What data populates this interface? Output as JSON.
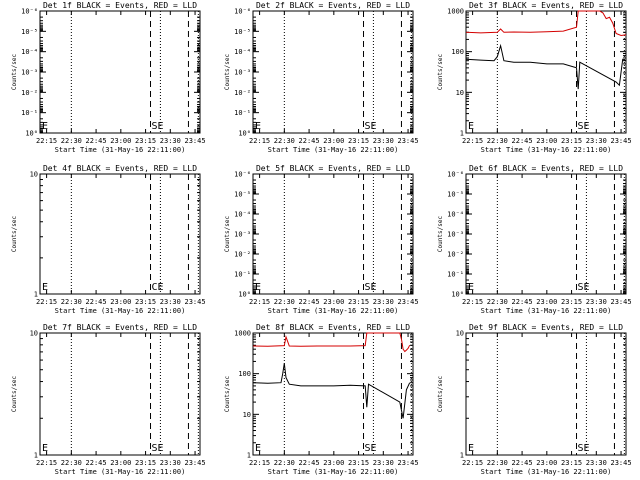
{
  "chart_data": [
    {
      "type": "line",
      "title": "Det 1f BLACK = Events, RED = LLD",
      "xlabel": "Start Time (31-May-16 22:11:00)",
      "ylabel": "Counts/sec",
      "x_ticks": [
        "22:15",
        "22:30",
        "22:45",
        "23:00",
        "23:15",
        "23:30",
        "23:45"
      ],
      "y_scale": "log",
      "y_ticks": [
        "10^0",
        "10^-1",
        "10^-2",
        "10^-3",
        "10^-4",
        "10^-5",
        "10^-6"
      ],
      "ylim": [
        1e-06,
        1.0
      ],
      "flipped_axis": true,
      "markers": [
        "E",
        "SE"
      ],
      "series": []
    },
    {
      "type": "line",
      "title": "Det 2f BLACK = Events, RED = LLD",
      "xlabel": "Start Time (31-May-16 22:11:00)",
      "ylabel": "Counts/sec",
      "x_ticks": [
        "22:15",
        "22:30",
        "22:45",
        "23:00",
        "23:15",
        "23:30",
        "23:45"
      ],
      "y_scale": "log",
      "y_ticks": [
        "10^0",
        "10^-1",
        "10^-2",
        "10^-3",
        "10^-4",
        "10^-5",
        "10^-6"
      ],
      "ylim": [
        1e-06,
        1.0
      ],
      "flipped_axis": true,
      "markers": [
        "E",
        "SE"
      ],
      "series": []
    },
    {
      "type": "line",
      "title": "Det 3f BLACK = Events, RED = LLD",
      "xlabel": "Start Time (31-May-16 22:11:00)",
      "ylabel": "Counts/sec",
      "x_ticks": [
        "22:15",
        "22:30",
        "22:45",
        "23:00",
        "23:15",
        "23:30",
        "23:45"
      ],
      "y_scale": "log",
      "y_ticks": [
        "1",
        "10",
        "100",
        "1000"
      ],
      "ylim": [
        1,
        1000
      ],
      "flipped_axis": false,
      "markers": [
        "E",
        "SE"
      ],
      "series": [
        {
          "color": "#d40000",
          "x": [
            "22:11",
            "22:20",
            "22:30",
            "22:32",
            "22:34",
            "22:40",
            "22:50",
            "23:00",
            "23:10",
            "23:18",
            "23:19",
            "23:22",
            "23:25",
            "23:28",
            "23:32",
            "23:34",
            "23:36",
            "23:38",
            "23:40",
            "23:42",
            "23:45",
            "23:48"
          ],
          "y": [
            300,
            290,
            300,
            360,
            300,
            305,
            300,
            310,
            320,
            400,
            1000,
            1000,
            1000,
            1000,
            1000,
            900,
            650,
            700,
            500,
            280,
            250,
            260
          ]
        },
        {
          "color": "#000000",
          "x": [
            "22:11",
            "22:20",
            "22:28",
            "22:30",
            "22:32",
            "22:34",
            "22:40",
            "22:50",
            "23:00",
            "23:10",
            "23:18",
            "23:19",
            "23:20",
            "23:42",
            "23:44",
            "23:46",
            "23:48"
          ],
          "y": [
            65,
            62,
            60,
            75,
            140,
            60,
            55,
            55,
            50,
            50,
            40,
            12,
            55,
            18,
            15,
            65,
            60
          ]
        }
      ]
    },
    {
      "type": "line",
      "title": "Det 4f BLACK = Events, RED = LLD",
      "xlabel": "Start Time (31-May-16 22:11:00)",
      "ylabel": "Counts/sec",
      "x_ticks": [
        "22:15",
        "22:30",
        "22:45",
        "23:00",
        "23:15",
        "23:30",
        "23:45"
      ],
      "y_scale": "log",
      "y_ticks": [
        "1",
        "10"
      ],
      "ylim": [
        1,
        10
      ],
      "flipped_axis": false,
      "markers": [
        "E",
        "CE"
      ],
      "series": []
    },
    {
      "type": "line",
      "title": "Det 5f BLACK = Events, RED = LLD",
      "xlabel": "Start Time (31-May-16 22:11:00)",
      "ylabel": "Counts/sec",
      "x_ticks": [
        "22:15",
        "22:30",
        "22:45",
        "23:00",
        "23:15",
        "23:30",
        "23:45"
      ],
      "y_scale": "log",
      "y_ticks": [
        "10^0",
        "10^-1",
        "10^-2",
        "10^-3",
        "10^-4",
        "10^-5",
        "10^-6"
      ],
      "ylim": [
        1e-06,
        1.0
      ],
      "flipped_axis": true,
      "markers": [
        "E",
        "SE"
      ],
      "series": []
    },
    {
      "type": "line",
      "title": "Det 6f BLACK = Events, RED = LLD",
      "xlabel": "Start Time (31-May-16 22:11:00)",
      "ylabel": "Counts/sec",
      "x_ticks": [
        "22:15",
        "22:30",
        "22:45",
        "23:00",
        "23:15",
        "23:30",
        "23:45"
      ],
      "y_scale": "log",
      "y_ticks": [
        "10^0",
        "10^-1",
        "10^-2",
        "10^-3",
        "10^-4",
        "10^-5",
        "10^-6"
      ],
      "ylim": [
        1e-06,
        1.0
      ],
      "flipped_axis": true,
      "markers": [
        "E",
        "SE"
      ],
      "series": []
    },
    {
      "type": "line",
      "title": "Det 7f BLACK = Events, RED = LLD",
      "xlabel": "Start Time (31-May-16 22:11:00)",
      "ylabel": "Counts/sec",
      "x_ticks": [
        "22:15",
        "22:30",
        "22:45",
        "23:00",
        "23:15",
        "23:30",
        "23:45"
      ],
      "y_scale": "log",
      "y_ticks": [
        "1",
        "10"
      ],
      "ylim": [
        1,
        10
      ],
      "flipped_axis": false,
      "markers": [
        "E",
        "SE"
      ],
      "series": []
    },
    {
      "type": "line",
      "title": "Det 8f BLACK = Events, RED = LLD",
      "xlabel": "Start Time (31-May-16 22:11:00)",
      "ylabel": "Counts/sec",
      "x_ticks": [
        "22:15",
        "22:30",
        "22:45",
        "23:00",
        "23:15",
        "23:30",
        "23:45"
      ],
      "y_scale": "log",
      "y_ticks": [
        "1",
        "10",
        "100",
        "1000"
      ],
      "ylim": [
        1,
        1000
      ],
      "flipped_axis": false,
      "markers": [
        "E",
        "SE"
      ],
      "series": [
        {
          "color": "#d40000",
          "x": [
            "22:11",
            "22:20",
            "22:30",
            "22:31",
            "22:33",
            "22:40",
            "22:50",
            "23:00",
            "23:10",
            "23:19",
            "23:20",
            "23:22",
            "23:30",
            "23:34",
            "23:38",
            "23:40",
            "23:41",
            "23:42",
            "23:43",
            "23:44",
            "23:45",
            "23:46"
          ],
          "y": [
            480,
            470,
            490,
            800,
            480,
            470,
            480,
            480,
            480,
            490,
            1000,
            1000,
            1000,
            1000,
            1000,
            1000,
            700,
            400,
            350,
            380,
            420,
            500
          ]
        },
        {
          "color": "#000000",
          "x": [
            "22:11",
            "22:20",
            "22:28",
            "22:29",
            "22:30",
            "22:31",
            "22:33",
            "22:40",
            "22:50",
            "23:00",
            "23:10",
            "23:19",
            "23:20",
            "23:21",
            "23:40",
            "23:42",
            "23:44",
            "23:46"
          ],
          "y": [
            60,
            58,
            60,
            100,
            180,
            80,
            55,
            50,
            50,
            50,
            52,
            50,
            15,
            55,
            20,
            8,
            40,
            60
          ]
        }
      ]
    },
    {
      "type": "line",
      "title": "Det 9f BLACK = Events, RED = LLD",
      "xlabel": "Start Time (31-May-16 22:11:00)",
      "ylabel": "Counts/sec",
      "x_ticks": [
        "22:15",
        "22:30",
        "22:45",
        "23:00",
        "23:15",
        "23:30",
        "23:45"
      ],
      "y_scale": "log",
      "y_ticks": [
        "1",
        "10"
      ],
      "ylim": [
        1,
        10
      ],
      "flipped_axis": false,
      "markers": [
        "E",
        "SE"
      ],
      "series": []
    }
  ]
}
